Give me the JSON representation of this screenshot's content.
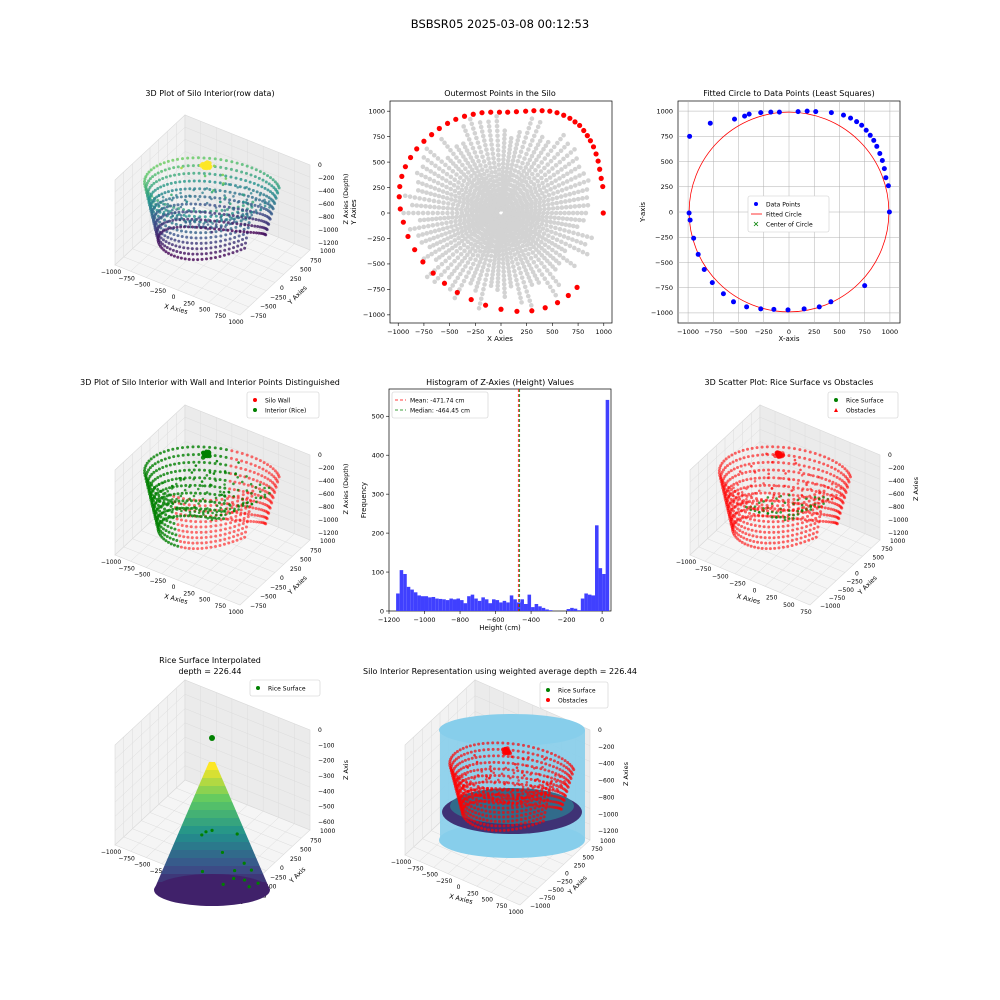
{
  "figure": {
    "suptitle": "BSBSR05 2025-03-08 00:12:53"
  },
  "colors": {
    "viridis": [
      "#440154",
      "#3b528b",
      "#21918c",
      "#5ec962",
      "#fde725"
    ],
    "wall": "#ff0000",
    "rice": "#008000",
    "hist_bar": "#4040ff",
    "outer_grey": "#d3d3d3",
    "cylinder": "#87ceeb"
  },
  "chart_data": [
    {
      "id": "p1",
      "type": "scatter3d",
      "title": "3D Plot of Silo Interior(row data)",
      "xlabel": "X Axies",
      "ylabel": "Y Axies",
      "zlabel": "Z Axies (Depth)",
      "xticks": [
        "−1000",
        "−750",
        "−500",
        "−250",
        "0",
        "250",
        "500",
        "750",
        "1000"
      ],
      "yticks": [
        "1000",
        "750",
        "500",
        "250",
        "0",
        "−250",
        "−500",
        "−750"
      ],
      "zticks": [
        "0",
        "−200",
        "−400",
        "−600",
        "−800",
        "−1000",
        "−1200"
      ],
      "xlim": [
        -1000,
        1000
      ],
      "ylim": [
        -1000,
        1000
      ],
      "zlim": [
        -1250,
        0
      ],
      "colormap": "viridis"
    },
    {
      "id": "p2",
      "type": "scatter",
      "title": "Outermost Points in the Silo",
      "xlabel": "X Axies",
      "ylabel": "Y Axies",
      "xticks": [
        "−1000",
        "−750",
        "−500",
        "−250",
        "0",
        "250",
        "500",
        "750",
        "1000"
      ],
      "yticks": [
        "1000",
        "750",
        "500",
        "250",
        "0",
        "−250",
        "−500",
        "−750",
        "−1000"
      ],
      "xlim": [
        -1080,
        1080
      ],
      "ylim": [
        -1080,
        1100
      ],
      "series": [
        {
          "name": "outermost",
          "x": [
            995,
            990,
            975,
            960,
            945,
            925,
            900,
            870,
            840,
            805,
            765,
            720,
            670,
            610,
            545,
            475,
            400,
            320,
            240,
            150,
            65,
            -15,
            -100,
            -185,
            -270,
            -355,
            -440,
            -520,
            -600,
            -675,
            -750,
            -820,
            -880,
            -930,
            -965,
            -985,
            -990,
            -980,
            -950,
            -905,
            -840,
            -760,
            -660,
            -550,
            -425,
            -290,
            -150,
            0,
            155,
            300,
            430,
            550,
            655,
            740
          ],
          "y": [
            0,
            260,
            340,
            430,
            510,
            580,
            650,
            710,
            760,
            810,
            860,
            895,
            930,
            960,
            985,
            1000,
            1005,
            1005,
            1000,
            995,
            990,
            990,
            990,
            985,
            970,
            950,
            920,
            880,
            830,
            770,
            705,
            630,
            545,
            455,
            360,
            260,
            160,
            40,
            -90,
            -230,
            -360,
            -480,
            -590,
            -690,
            -780,
            -850,
            -905,
            -945,
            -965,
            -960,
            -930,
            -880,
            -810,
            -730
          ],
          "color": "red"
        }
      ]
    },
    {
      "id": "p3",
      "type": "scatter",
      "title": "Fitted Circle to Data Points (Least Squares)",
      "xlabel": "X-axis",
      "ylabel": "Y-axis",
      "xticks": [
        "−1000",
        "−750",
        "−500",
        "−250",
        "0",
        "250",
        "500",
        "750",
        "1000"
      ],
      "yticks": [
        "1000",
        "750",
        "500",
        "250",
        "0",
        "−250",
        "−500",
        "−750",
        "−1000"
      ],
      "xlim": [
        -1100,
        1100
      ],
      "ylim": [
        -1100,
        1100
      ],
      "legend": [
        "Data Points",
        "Fitted Circle",
        "Center of Circle"
      ],
      "center": [
        0,
        0
      ],
      "radius": 990,
      "series": [
        {
          "name": "Data Points",
          "x": [
            995,
            960,
            945,
            925,
            900,
            870,
            840,
            805,
            765,
            720,
            670,
            610,
            540,
            420,
            265,
            180,
            90,
            -95,
            -180,
            -280,
            -395,
            -440,
            -540,
            -780,
            -985,
            -990,
            -980,
            -945,
            -900,
            -840,
            -760,
            -650,
            -550,
            -420,
            -280,
            -150,
            -10,
            150,
            300,
            415,
            750,
            985
          ],
          "y": [
            0,
            340,
            430,
            510,
            580,
            650,
            710,
            760,
            810,
            860,
            895,
            930,
            960,
            985,
            995,
            1000,
            995,
            990,
            990,
            985,
            970,
            950,
            920,
            880,
            750,
            -10,
            -80,
            -260,
            -420,
            -570,
            -700,
            -810,
            -890,
            -940,
            -960,
            -965,
            -970,
            -960,
            -940,
            -890,
            -730,
            260
          ],
          "color": "blue"
        }
      ]
    },
    {
      "id": "p4",
      "type": "scatter3d",
      "title": "3D Plot of Silo Interior with Wall and Interior Points Distinguished",
      "xlabel": "X Axies",
      "ylabel": "Y Axies",
      "zlabel": "Z Axies (Depth)",
      "xticks": [
        "−1000",
        "−750",
        "−500",
        "−250",
        "0",
        "250",
        "500",
        "750",
        "1000"
      ],
      "yticks": [
        "1000",
        "750",
        "500",
        "250",
        "0",
        "−250",
        "−500",
        "−750"
      ],
      "zticks": [
        "0",
        "−200",
        "−400",
        "−600",
        "−800",
        "−1000",
        "−1200"
      ],
      "legend": [
        "Silo Wall",
        "Interior (Rice)"
      ]
    },
    {
      "id": "p5",
      "type": "bar",
      "title": "Histogram of Z-Axies (Height) Values",
      "xlabel": "Height (cm)",
      "ylabel": "Frequency",
      "xlim": [
        -1200,
        50
      ],
      "ylim": [
        0,
        570
      ],
      "xticks": [
        -1200,
        -1000,
        -800,
        -600,
        -400,
        -200,
        0
      ],
      "xtick_labels": [
        "−1200",
        "−1000",
        "−800",
        "−600",
        "−400",
        "−200",
        "0"
      ],
      "yticks": [
        0,
        100,
        200,
        300,
        400,
        500
      ],
      "mean": -471.74,
      "median": -464.45,
      "legend": [
        "Mean: -471.74 cm",
        "Median: -464.45 cm"
      ],
      "bin_start": -1160,
      "bin_width": 20,
      "values": [
        45,
        105,
        95,
        62,
        55,
        48,
        40,
        38,
        38,
        35,
        36,
        32,
        31,
        30,
        28,
        32,
        30,
        32,
        28,
        20,
        38,
        42,
        32,
        26,
        35,
        30,
        20,
        30,
        28,
        22,
        26,
        22,
        40,
        30,
        22,
        30,
        18,
        42,
        10,
        18,
        12,
        8,
        4,
        2,
        0,
        0,
        0,
        0,
        5,
        8,
        6,
        2,
        32,
        45,
        42,
        40,
        220,
        110,
        95,
        542
      ]
    },
    {
      "id": "p6",
      "type": "scatter3d",
      "title": "3D Scatter Plot: Rice Surface vs Obstacles",
      "xlabel": "X Axies",
      "ylabel": "Y Axies",
      "zlabel": "Z Axies",
      "xticks": [
        "−1000",
        "−750",
        "−500",
        "−250",
        "0",
        "250",
        "500",
        "750"
      ],
      "yticks": [
        "1000",
        "750",
        "500",
        "250",
        "0",
        "−250",
        "−500",
        "−750",
        "−1000"
      ],
      "zticks": [
        "0",
        "−200",
        "−400",
        "−600",
        "−800",
        "−1000",
        "−1200"
      ],
      "legend": [
        "Rice Surface",
        "Obstacles"
      ]
    },
    {
      "id": "p7",
      "type": "surface3d",
      "title": "Rice Surface Interpolated",
      "subtitle": "depth = 226.44",
      "xlabel": "X Axies",
      "ylabel": "Y Axis",
      "zlabel": "Z Axis",
      "xticks": [
        "−1000",
        "−750",
        "−500",
        "−250",
        "0",
        "250",
        "500",
        "750",
        "1000"
      ],
      "yticks": [
        "1000",
        "750",
        "500",
        "250",
        "0",
        "−250",
        "−500",
        "−750"
      ],
      "zticks": [
        "0",
        "−100",
        "−200",
        "−300",
        "−400",
        "−500",
        "−600"
      ],
      "legend": [
        "Rice Surface"
      ]
    },
    {
      "id": "p8",
      "type": "surface3d",
      "title": "Silo Interior Representation using weighted average depth = 226.44",
      "xlabel": "X Axies",
      "ylabel": "Y Axies",
      "zlabel": "Z Axies",
      "xticks": [
        "−1000",
        "−750",
        "−500",
        "−250",
        "0",
        "250",
        "500",
        "750",
        "1000"
      ],
      "yticks": [
        "1000",
        "750",
        "500",
        "250",
        "0",
        "−250",
        "−500",
        "−750",
        "−1000"
      ],
      "zticks": [
        "0",
        "−200",
        "−400",
        "−600",
        "−800",
        "−1000",
        "−1200"
      ],
      "legend": [
        "Rice Surface",
        "Obstacles"
      ]
    }
  ]
}
